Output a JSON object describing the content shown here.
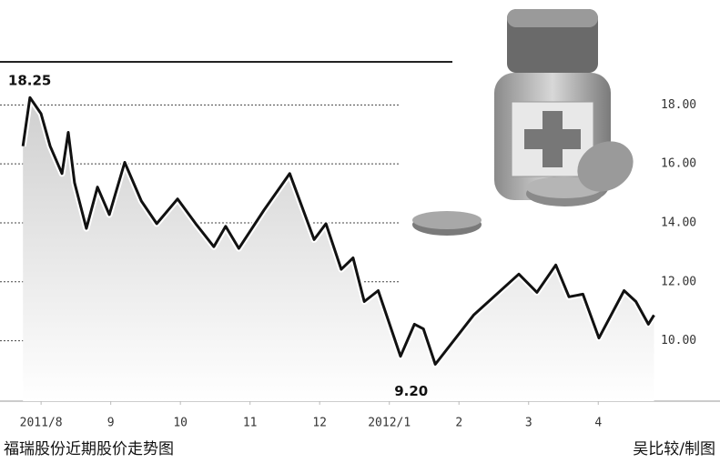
{
  "chart_data": {
    "type": "line",
    "x": [
      7.74,
      7.84,
      8.0,
      8.13,
      8.3,
      8.39,
      8.48,
      8.65,
      8.81,
      8.98,
      9.2,
      9.44,
      9.66,
      9.96,
      10.22,
      10.48,
      10.65,
      10.84,
      11.2,
      11.57,
      11.92,
      12.09,
      12.31,
      12.48,
      12.64,
      12.84,
      13.16,
      13.36,
      13.49,
      13.66,
      14.21,
      14.86,
      15.12,
      15.39,
      15.58,
      15.78,
      16.01,
      16.37,
      16.54,
      16.72,
      16.8
    ],
    "values": [
      16.6,
      18.25,
      17.7,
      16.6,
      15.67,
      17.07,
      15.36,
      13.81,
      15.21,
      14.28,
      16.05,
      14.74,
      13.97,
      14.81,
      13.97,
      13.19,
      13.88,
      13.13,
      14.43,
      15.67,
      13.43,
      13.97,
      12.42,
      12.81,
      11.33,
      11.7,
      9.47,
      10.56,
      10.4,
      9.2,
      10.87,
      12.26,
      11.64,
      12.57,
      11.49,
      11.58,
      10.09,
      11.7,
      11.33,
      10.56,
      10.87
    ],
    "value_labels": [
      null,
      "18.25",
      null,
      null,
      null,
      null,
      null,
      null,
      null,
      null,
      null,
      null,
      null,
      null,
      null,
      null,
      null,
      null,
      null,
      null,
      null,
      null,
      null,
      null,
      null,
      null,
      null,
      null,
      null,
      "9.20",
      null,
      null,
      null,
      null,
      null,
      null,
      null,
      null,
      null,
      null,
      null
    ],
    "color": "#111111",
    "xlim": [
      7.41,
      16.82
    ],
    "xticks": [
      {
        "value": 8,
        "label": "2011/8"
      },
      9,
      10,
      11,
      12,
      {
        "value": 13,
        "label": "2012/1"
      },
      {
        "value": 14,
        "label": "2"
      },
      {
        "value": 15,
        "label": "3"
      },
      {
        "value": 16,
        "label": "4"
      }
    ],
    "ylim": [
      7.95,
      19.46
    ],
    "yticks": [
      {
        "value": 10,
        "label": "10.00"
      },
      {
        "value": 12,
        "label": "12.00"
      },
      {
        "value": 14,
        "label": "14.00"
      },
      {
        "value": 16,
        "label": "16.00"
      },
      {
        "value": 18,
        "label": "18.00"
      }
    ],
    "grid": true,
    "caption": "福瑞股份近期股价走势图",
    "credit": "吴比较/制图"
  }
}
